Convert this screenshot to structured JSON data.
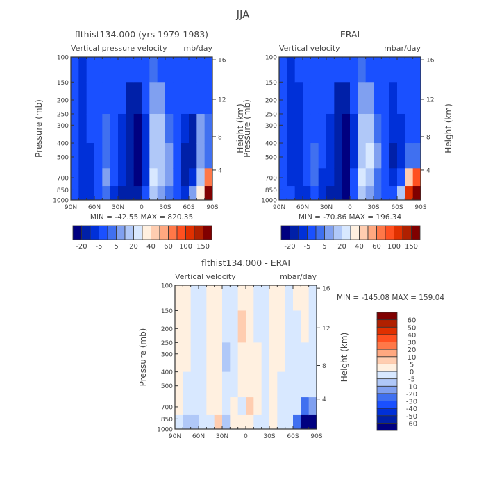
{
  "main_title": "JJA",
  "chart_data": [
    {
      "type": "heatmap",
      "title": "flthist134.000 (yrs 1979-1983)",
      "subtitle_left": "Vertical pressure velocity",
      "subtitle_right": "mb/day",
      "ylabel": "Pressure (mb)",
      "ylabel_right": "Height (km)",
      "stats": "MIN = -42.55   MAX = 820.35",
      "x_ticks": [
        "90N",
        "60N",
        "30N",
        "0",
        "30S",
        "60S",
        "90S"
      ],
      "y_ticks": [
        "100",
        "150",
        "200",
        "250",
        "300",
        "400",
        "500",
        "700",
        "850",
        "1000"
      ],
      "y_ticks_right": [
        "16",
        "12",
        "8",
        "4"
      ],
      "ylim": [
        1000,
        100
      ],
      "lat_centers": [
        85,
        75,
        65,
        55,
        45,
        35,
        25,
        15,
        5,
        -5,
        -15,
        -25,
        -35,
        -45,
        -55,
        -65,
        -75,
        -85
      ],
      "pressure_edges": [
        100,
        150,
        250,
        400,
        600,
        800,
        1000
      ],
      "values": [
        [
          -3,
          -3,
          -3,
          -3,
          -3,
          -3
        ],
        [
          -7,
          -7,
          -7,
          -7,
          -7,
          -7
        ],
        [
          -3,
          -3,
          -3,
          -7,
          -7,
          -7
        ],
        [
          -3,
          -3,
          -3,
          -3,
          -3,
          -3
        ],
        [
          -3,
          -3,
          2,
          2,
          7,
          2
        ],
        [
          -3,
          -3,
          -3,
          -3,
          -3,
          -7
        ],
        [
          -3,
          -3,
          -7,
          -7,
          -7,
          -15
        ],
        [
          -3,
          -15,
          -15,
          -15,
          -15,
          -15
        ],
        [
          -3,
          -15,
          -25,
          -25,
          -25,
          -15
        ],
        [
          -3,
          -3,
          -7,
          -7,
          -7,
          -3
        ],
        [
          2,
          7,
          15,
          15,
          25,
          15
        ],
        [
          -3,
          7,
          15,
          15,
          15,
          7
        ],
        [
          -3,
          -3,
          2,
          7,
          7,
          2
        ],
        [
          -3,
          -3,
          -3,
          -3,
          -3,
          -3
        ],
        [
          -3,
          -3,
          -7,
          -15,
          -15,
          -7
        ],
        [
          -3,
          -3,
          -15,
          -15,
          -7,
          7
        ],
        [
          -3,
          -3,
          7,
          7,
          15,
          30
        ],
        [
          -3,
          -3,
          2,
          2,
          60,
          150
        ]
      ],
      "levels": [
        -20,
        -10,
        -5,
        0,
        5,
        10,
        20,
        30,
        40,
        50,
        60,
        80,
        100,
        120,
        150
      ],
      "colorbar_labels": [
        "-20",
        "-5",
        "5",
        "20",
        "40",
        "60",
        "100",
        "150"
      ],
      "colors": [
        "#000080",
        "#0020a8",
        "#0030d8",
        "#1a50ff",
        "#4070f0",
        "#80a0f0",
        "#b0c8f8",
        "#d8e8ff",
        "#fff0e0",
        "#ffcdb0",
        "#ffa880",
        "#ff7848",
        "#ff5020",
        "#e03000",
        "#b02000",
        "#800000"
      ]
    },
    {
      "type": "heatmap",
      "title": "ERAI",
      "subtitle_left": "Vertical velocity",
      "subtitle_right": "mbar/day",
      "ylabel": "Pressure (mb)",
      "ylabel_right": "Height (km)",
      "stats": "MIN = -70.86   MAX = 196.34",
      "x_ticks": [
        "90N",
        "60N",
        "30N",
        "0",
        "30S",
        "60S",
        "90S"
      ],
      "y_ticks": [
        "100",
        "150",
        "200",
        "250",
        "300",
        "400",
        "500",
        "700",
        "850",
        "1000"
      ],
      "y_ticks_right": [
        "16",
        "12",
        "8",
        "4"
      ],
      "ylim": [
        1000,
        100
      ],
      "lat_centers": [
        85,
        75,
        65,
        55,
        45,
        35,
        25,
        15,
        5,
        -5,
        -15,
        -25,
        -35,
        -45,
        -55,
        -65,
        -75,
        -85
      ],
      "pressure_edges": [
        100,
        150,
        250,
        400,
        600,
        800,
        1000
      ],
      "values": [
        [
          -3,
          -3,
          -3,
          -3,
          -3,
          -3
        ],
        [
          -7,
          -7,
          -7,
          -7,
          -7,
          -3
        ],
        [
          -3,
          -7,
          -7,
          -7,
          -7,
          -7
        ],
        [
          -3,
          -3,
          -3,
          -3,
          -3,
          -7
        ],
        [
          -3,
          -3,
          -3,
          2,
          2,
          -3
        ],
        [
          -3,
          -3,
          -3,
          -3,
          -7,
          -7
        ],
        [
          -3,
          -3,
          -7,
          -7,
          -7,
          -15
        ],
        [
          -3,
          -15,
          -15,
          -15,
          -15,
          -15
        ],
        [
          -3,
          -15,
          -25,
          -25,
          -25,
          -25
        ],
        [
          -3,
          -3,
          -7,
          -7,
          -3,
          -3
        ],
        [
          2,
          7,
          15,
          15,
          25,
          15
        ],
        [
          -3,
          7,
          15,
          25,
          15,
          7
        ],
        [
          -3,
          -3,
          2,
          7,
          2,
          2
        ],
        [
          -3,
          -3,
          -3,
          -3,
          -3,
          -3
        ],
        [
          -3,
          -7,
          -7,
          -15,
          -7,
          -3
        ],
        [
          -3,
          -3,
          -7,
          -7,
          -3,
          15
        ],
        [
          -3,
          -3,
          -3,
          2,
          40,
          100
        ],
        [
          -3,
          -3,
          -3,
          2,
          80,
          150
        ]
      ],
      "levels": [
        -20,
        -10,
        -5,
        0,
        5,
        10,
        20,
        30,
        40,
        50,
        60,
        80,
        100,
        120,
        150
      ],
      "colorbar_labels": [
        "-20",
        "-5",
        "5",
        "20",
        "40",
        "60",
        "100",
        "150"
      ],
      "colors": [
        "#000080",
        "#0020a8",
        "#0030d8",
        "#1a50ff",
        "#4070f0",
        "#80a0f0",
        "#b0c8f8",
        "#d8e8ff",
        "#fff0e0",
        "#ffcdb0",
        "#ffa880",
        "#ff7848",
        "#ff5020",
        "#e03000",
        "#b02000",
        "#800000"
      ]
    },
    {
      "type": "heatmap",
      "title": "flthist134.000 - ERAI",
      "subtitle_left": "Vertical velocity",
      "subtitle_right": "mbar/day",
      "ylabel": "Pressure (mb)",
      "ylabel_right": "Height (km)",
      "stats": "MIN = -145.08   MAX = 159.04",
      "x_ticks": [
        "90N",
        "60N",
        "30N",
        "0",
        "30S",
        "60S",
        "90S"
      ],
      "y_ticks": [
        "100",
        "150",
        "200",
        "250",
        "300",
        "400",
        "500",
        "700",
        "850",
        "1000"
      ],
      "y_ticks_right": [
        "16",
        "12",
        "8",
        "4"
      ],
      "ylim": [
        1000,
        100
      ],
      "lat_centers": [
        85,
        75,
        65,
        55,
        45,
        35,
        25,
        15,
        5,
        -5,
        -15,
        -25,
        -35,
        -45,
        -55,
        -65,
        -75,
        -85
      ],
      "pressure_edges": [
        100,
        150,
        250,
        400,
        600,
        800,
        1000
      ],
      "values": [
        [
          2,
          2,
          2,
          2,
          2,
          -2
        ],
        [
          2,
          2,
          2,
          -2,
          -2,
          -8
        ],
        [
          -2,
          -2,
          -2,
          -2,
          -2,
          -8
        ],
        [
          -2,
          -2,
          -2,
          -2,
          -2,
          -2
        ],
        [
          2,
          2,
          2,
          2,
          2,
          -2
        ],
        [
          2,
          2,
          2,
          2,
          2,
          7
        ],
        [
          -2,
          -2,
          -8,
          -2,
          -2,
          -8
        ],
        [
          -2,
          -2,
          -2,
          -2,
          2,
          2
        ],
        [
          2,
          7,
          2,
          2,
          -2,
          2
        ],
        [
          2,
          2,
          2,
          2,
          7,
          2
        ],
        [
          -2,
          -2,
          2,
          2,
          2,
          -2
        ],
        [
          -2,
          -2,
          -2,
          -2,
          -2,
          -2
        ],
        [
          2,
          2,
          2,
          2,
          2,
          2
        ],
        [
          2,
          2,
          2,
          -2,
          -2,
          -2
        ],
        [
          -2,
          -2,
          -2,
          -2,
          -2,
          -2
        ],
        [
          2,
          -2,
          -2,
          -2,
          -2,
          -30
        ],
        [
          2,
          2,
          -2,
          -2,
          -30,
          -70
        ],
        [
          -2,
          -2,
          -2,
          -2,
          -20,
          -70
        ]
      ],
      "levels": [
        -60,
        -50,
        -40,
        -30,
        -20,
        -10,
        -5,
        0,
        5,
        10,
        20,
        30,
        40,
        50,
        60
      ],
      "colorbar_labels": [
        "-60",
        "-50",
        "-40",
        "-30",
        "-20",
        "-10",
        "-5",
        "0",
        "5",
        "10",
        "20",
        "30",
        "40",
        "50",
        "60"
      ],
      "colors": [
        "#000080",
        "#0020a8",
        "#0030d8",
        "#1a50ff",
        "#4070f0",
        "#80a0f0",
        "#b0c8f8",
        "#d8e8ff",
        "#fff0e0",
        "#ffcdb0",
        "#ffa880",
        "#ff7848",
        "#ff5020",
        "#e03000",
        "#b02000",
        "#800000"
      ]
    }
  ]
}
